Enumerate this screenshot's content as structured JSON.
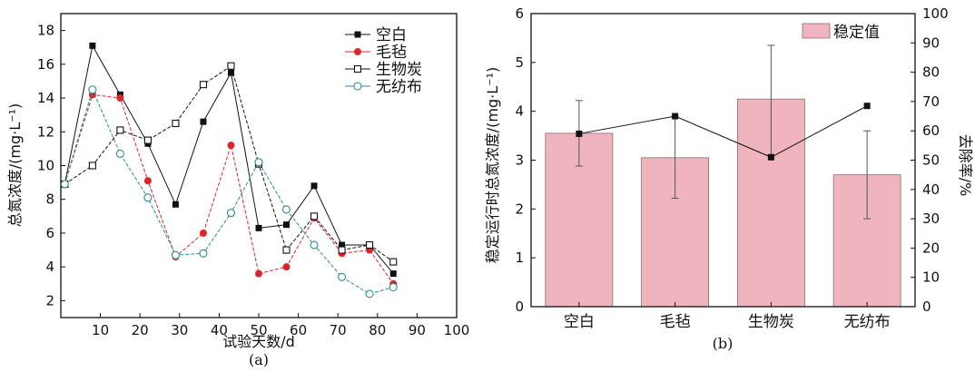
{
  "chart_data": [
    {
      "type": "line",
      "xlabel": "试验天数/d",
      "ylabel": "总氮浓度/(mg·L⁻¹)",
      "xlim": [
        0,
        100
      ],
      "ylim": [
        1,
        19
      ],
      "xticks": [
        10,
        20,
        30,
        40,
        50,
        60,
        70,
        80,
        90,
        100
      ],
      "yticks": [
        2,
        4,
        6,
        8,
        10,
        12,
        14,
        16,
        18
      ],
      "caption": "(a)",
      "legend_position": "top-right",
      "series": [
        {
          "name": "空白",
          "marker": "filled-square",
          "color": "#111111",
          "x": [
            1,
            8,
            15,
            22,
            29,
            36,
            43,
            50,
            57,
            64,
            71,
            78,
            84
          ],
          "y": [
            8.9,
            17.1,
            14.2,
            11.3,
            7.7,
            12.6,
            15.5,
            6.3,
            6.5,
            8.8,
            5.3,
            5.3,
            3.6
          ]
        },
        {
          "name": "毛毡",
          "marker": "filled-circle",
          "color": "#d9262b",
          "x": [
            1,
            8,
            15,
            22,
            29,
            36,
            43,
            50,
            57,
            64,
            71,
            78,
            84
          ],
          "y": [
            8.9,
            14.2,
            14.0,
            9.1,
            4.6,
            6.0,
            11.2,
            3.6,
            4.0,
            6.9,
            4.8,
            5.0,
            3.0
          ]
        },
        {
          "name": "生物炭",
          "marker": "open-square",
          "color": "#111111",
          "x": [
            1,
            8,
            15,
            22,
            29,
            36,
            43,
            50,
            57,
            64,
            71,
            78,
            84
          ],
          "y": [
            8.9,
            10.0,
            12.1,
            11.5,
            12.5,
            14.8,
            15.9,
            10.1,
            5.0,
            7.0,
            5.0,
            5.3,
            4.3
          ]
        },
        {
          "name": "无纺布",
          "marker": "open-circle",
          "color": "#2a8c8c",
          "x": [
            1,
            8,
            15,
            22,
            29,
            36,
            43,
            50,
            57,
            64,
            71,
            78,
            84
          ],
          "y": [
            8.9,
            14.5,
            10.7,
            8.1,
            4.7,
            4.8,
            7.2,
            10.2,
            7.4,
            5.3,
            3.4,
            2.4,
            2.8
          ]
        }
      ]
    },
    {
      "type": "bar",
      "categories": [
        "空白",
        "毛毡",
        "生物炭",
        "无纺布"
      ],
      "ylabel": "稳定运行时总氮浓度/(mg·L⁻¹)",
      "y2label": "去除率/%",
      "ylim": [
        0,
        6
      ],
      "y2lim": [
        0,
        100
      ],
      "yticks": [
        0,
        1,
        2,
        3,
        4,
        5,
        6
      ],
      "y2ticks": [
        0,
        10,
        20,
        30,
        40,
        50,
        60,
        70,
        80,
        90,
        100
      ],
      "caption": "(b)",
      "legend_position": "top-right",
      "bar_series": {
        "name": "稳定值",
        "color": "#f0b4be",
        "values": [
          3.55,
          3.05,
          4.25,
          2.7
        ],
        "error_low": [
          2.88,
          2.22,
          3.1,
          1.8
        ],
        "error_high": [
          4.22,
          3.88,
          5.35,
          3.6
        ]
      },
      "line_series": {
        "axis": "right",
        "marker": "filled-square",
        "color": "#111111",
        "values": [
          59,
          65,
          51,
          68.5
        ]
      }
    }
  ]
}
